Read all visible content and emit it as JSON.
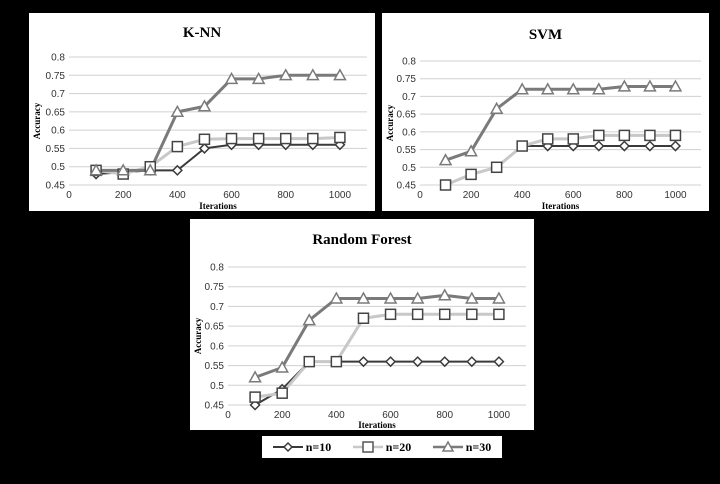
{
  "chart_data": [
    {
      "type": "line",
      "title": "K-NN",
      "xlabel": "Iterations",
      "ylabel": "Accuracy",
      "xlim": [
        0,
        1100
      ],
      "ylim": [
        0.45,
        0.8
      ],
      "x_ticks": [
        0,
        200,
        400,
        600,
        800,
        1000
      ],
      "y_ticks": [
        0.45,
        0.5,
        0.55,
        0.6,
        0.65,
        0.7,
        0.75,
        0.8
      ],
      "grid": true,
      "x": [
        100,
        200,
        300,
        400,
        500,
        600,
        700,
        800,
        900,
        1000
      ],
      "series": [
        {
          "name": "n=10",
          "values": [
            0.48,
            0.485,
            0.49,
            0.49,
            0.55,
            0.56,
            0.56,
            0.56,
            0.56,
            0.56
          ]
        },
        {
          "name": "n=20",
          "values": [
            0.49,
            0.48,
            0.5,
            0.555,
            0.575,
            0.577,
            0.577,
            0.577,
            0.577,
            0.58
          ]
        },
        {
          "name": "n=30",
          "values": [
            0.49,
            0.49,
            0.49,
            0.65,
            0.665,
            0.74,
            0.74,
            0.75,
            0.75,
            0.75
          ]
        }
      ]
    },
    {
      "type": "line",
      "title": "SVM",
      "xlabel": "Iterations",
      "ylabel": "Accuracy",
      "xlim": [
        0,
        1100
      ],
      "ylim": [
        0.45,
        0.8
      ],
      "x_ticks": [
        0,
        200,
        400,
        600,
        800,
        1000
      ],
      "y_ticks": [
        0.45,
        0.5,
        0.55,
        0.6,
        0.65,
        0.7,
        0.75,
        0.8
      ],
      "grid": true,
      "x": [
        100,
        200,
        300,
        400,
        500,
        600,
        700,
        800,
        900,
        1000
      ],
      "series": [
        {
          "name": "n=10",
          "values": [
            0.45,
            0.48,
            0.5,
            0.56,
            0.56,
            0.56,
            0.56,
            0.56,
            0.56,
            0.56
          ]
        },
        {
          "name": "n=20",
          "values": [
            0.45,
            0.48,
            0.5,
            0.56,
            0.58,
            0.58,
            0.59,
            0.59,
            0.59,
            0.59
          ]
        },
        {
          "name": "n=30",
          "values": [
            0.52,
            0.545,
            0.665,
            0.72,
            0.72,
            0.72,
            0.72,
            0.728,
            0.728,
            0.728
          ]
        }
      ]
    },
    {
      "type": "line",
      "title": "Random Forest",
      "xlabel": "Iterations",
      "ylabel": "Accuracy",
      "xlim": [
        0,
        1100
      ],
      "ylim": [
        0.45,
        0.8
      ],
      "x_ticks": [
        0,
        200,
        400,
        600,
        800,
        1000
      ],
      "y_ticks": [
        0.45,
        0.5,
        0.55,
        0.6,
        0.65,
        0.7,
        0.75,
        0.8
      ],
      "grid": true,
      "x": [
        100,
        200,
        300,
        400,
        500,
        600,
        700,
        800,
        900,
        1000
      ],
      "series": [
        {
          "name": "n=10",
          "values": [
            0.45,
            0.49,
            0.56,
            0.56,
            0.56,
            0.56,
            0.56,
            0.56,
            0.56,
            0.56
          ]
        },
        {
          "name": "n=20",
          "values": [
            0.47,
            0.48,
            0.56,
            0.56,
            0.67,
            0.68,
            0.68,
            0.68,
            0.68,
            0.68
          ]
        },
        {
          "name": "n=30",
          "values": [
            0.52,
            0.545,
            0.665,
            0.72,
            0.72,
            0.72,
            0.72,
            0.728,
            0.72,
            0.72
          ]
        }
      ]
    }
  ],
  "legend": [
    {
      "label": "n=10",
      "marker": "diamond",
      "color": "#3a3a3a"
    },
    {
      "label": "n=20",
      "marker": "square",
      "color": "#c8c8c8"
    },
    {
      "label": "n=30",
      "marker": "triangle",
      "color": "#7a7a7a"
    }
  ]
}
